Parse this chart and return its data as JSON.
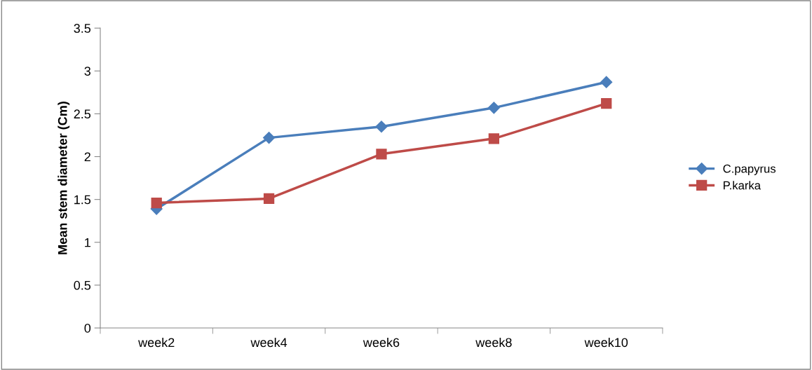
{
  "chart_data": {
    "type": "line",
    "ylabel": "Mean stem diameter (Cm)",
    "categories": [
      "week2",
      "week4",
      "week6",
      "week8",
      "week10"
    ],
    "series": [
      {
        "name": "C.papyrus",
        "color": "#4a7ebb",
        "marker": "diamond",
        "values": [
          1.39,
          2.22,
          2.35,
          2.57,
          2.87
        ]
      },
      {
        "name": "P.karka",
        "color": "#be4b48",
        "marker": "square",
        "values": [
          1.46,
          1.51,
          2.03,
          2.21,
          2.62
        ]
      }
    ],
    "ylim": [
      0,
      3.5
    ],
    "yticks": [
      0,
      0.5,
      1,
      1.5,
      2,
      2.5,
      3,
      3.5
    ],
    "grid": false,
    "legend": "right",
    "line_style": "solid"
  }
}
